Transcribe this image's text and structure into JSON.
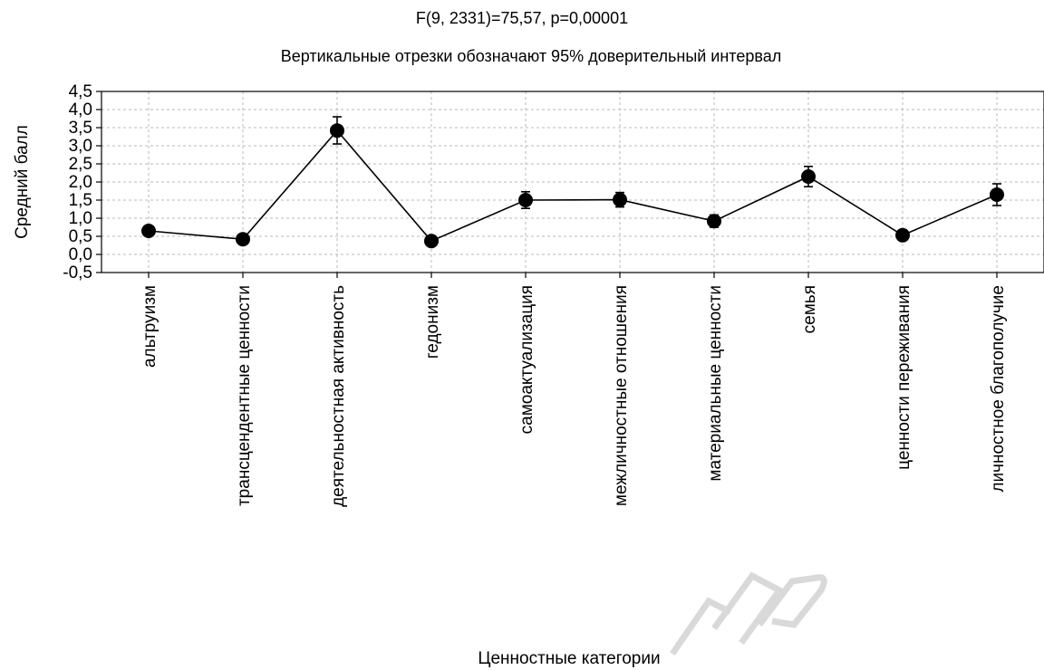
{
  "chart_data": {
    "type": "line",
    "title": "F(9, 2331)=75,57, p=0,00001",
    "subtitle": "Вертикальные отрезки обозначают 95% доверительный интервал",
    "xlabel": "Ценностные категории",
    "ylabel": "Средний балл",
    "ylim": [
      -0.5,
      4.5
    ],
    "yticks": [
      "-0,5",
      "0,0",
      "0,5",
      "1,0",
      "1,5",
      "2,0",
      "2,5",
      "3,0",
      "3,5",
      "4,0",
      "4,5"
    ],
    "grid": true,
    "categories": [
      "альтруизм",
      "трансцендентные ценности",
      "деятельностная активность",
      "гедонизм",
      "самоактуализация",
      "межличностные отношения",
      "материальные ценности",
      "семья",
      "ценности переживания",
      "личностное благополучие"
    ],
    "series": [
      {
        "values": [
          0.65,
          0.42,
          3.42,
          0.37,
          1.5,
          1.51,
          0.92,
          2.15,
          0.53,
          1.65
        ],
        "ci_low": [
          0.6,
          0.37,
          3.05,
          0.32,
          1.27,
          1.31,
          0.75,
          1.87,
          0.48,
          1.35
        ],
        "ci_high": [
          0.7,
          0.47,
          3.8,
          0.42,
          1.73,
          1.71,
          1.09,
          2.43,
          0.58,
          1.95
        ]
      }
    ],
    "watermark": "БГПУ"
  }
}
